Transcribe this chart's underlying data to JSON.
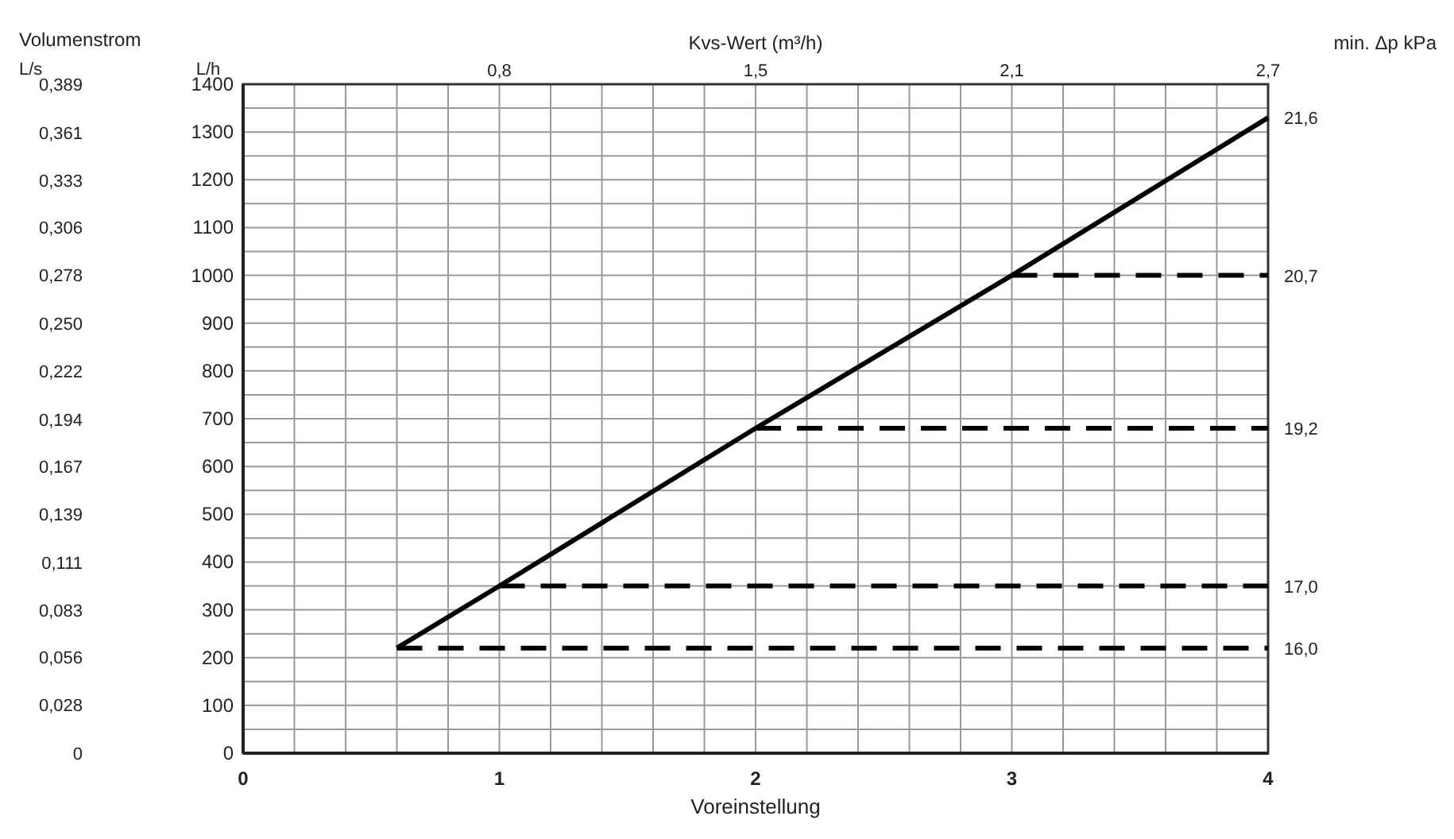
{
  "chart_data": {
    "type": "line",
    "annotations": [
      "Volumenstrom",
      "min. Δp kPa",
      "0,8",
      "1,5",
      "2,1",
      "2,7",
      "21,6",
      "16,0",
      "17,0",
      "19,2",
      "20,7"
    ],
    "xlabel": "Voreinstellung",
    "ylabel": "L/h",
    "y2label": "L/s",
    "x2label": "Kvs-Wert (m³/h)",
    "xlim": [
      0,
      4
    ],
    "xticks": [
      0,
      {
        "value": 0.2,
        "label": null
      },
      {
        "value": 0.4,
        "label": null
      },
      {
        "value": 0.6,
        "label": null
      },
      {
        "value": 0.8,
        "label": null
      },
      1,
      {
        "value": 1.2,
        "label": null
      },
      {
        "value": 1.4,
        "label": null
      },
      {
        "value": 1.6,
        "label": null
      },
      {
        "value": 1.8,
        "label": null
      },
      2,
      {
        "value": 2.2,
        "label": null
      },
      {
        "value": 2.4,
        "label": null
      },
      {
        "value": 2.6,
        "label": null
      },
      {
        "value": 2.8,
        "label": null
      },
      3,
      {
        "value": 3.2,
        "label": null
      },
      {
        "value": 3.4,
        "label": null
      },
      {
        "value": 3.6,
        "label": null
      },
      {
        "value": 3.8,
        "label": null
      },
      4
    ],
    "ylim": [
      0,
      1400
    ],
    "yticks": [
      0,
      {
        "value": 50,
        "label": null
      },
      100,
      {
        "value": 150,
        "label": null
      },
      200,
      {
        "value": 250,
        "label": null
      },
      300,
      {
        "value": 350,
        "label": null
      },
      400,
      {
        "value": 450,
        "label": null
      },
      500,
      {
        "value": 550,
        "label": null
      },
      600,
      {
        "value": 650,
        "label": null
      },
      700,
      {
        "value": 750,
        "label": null
      },
      800,
      {
        "value": 850,
        "label": null
      },
      900,
      {
        "value": 950,
        "label": null
      },
      1000,
      {
        "value": 1050,
        "label": null
      },
      1100,
      {
        "value": 1150,
        "label": null
      },
      1200,
      {
        "value": 1250,
        "label": null
      },
      1300,
      {
        "value": 1350,
        "label": null
      },
      1400
    ],
    "y2lim": [
      0,
      0.389
    ],
    "y2ticks": [
      0,
      {
        "value": 0.028,
        "label": "0,028"
      },
      {
        "value": 0.056,
        "label": "0,056"
      },
      {
        "value": 0.083,
        "label": "0,083"
      },
      {
        "value": 0.111,
        "label": "0,111"
      },
      {
        "value": 0.139,
        "label": "0,139"
      },
      {
        "value": 0.167,
        "label": "0,167"
      },
      {
        "value": 0.194,
        "label": "0,194"
      },
      {
        "value": 0.222,
        "label": "0,222"
      },
      {
        "value": 0.25,
        "label": "0,250"
      },
      {
        "value": 0.278,
        "label": "0,278"
      },
      {
        "value": 0.306,
        "label": "0,306"
      },
      {
        "value": 0.333,
        "label": "0,333"
      },
      {
        "value": 0.361,
        "label": "0,361"
      },
      {
        "value": 0.389,
        "label": "0,389"
      }
    ],
    "grid": true,
    "marker": "none",
    "series": [
      {
        "color": "#000000",
        "line_style": "solid",
        "x": [
          0.6,
          1,
          2,
          3,
          4
        ],
        "values": [
          220,
          350,
          680,
          1000,
          1330
        ]
      },
      {
        "color": "#000000",
        "line_style": "dashed",
        "x": [
          0.6,
          4
        ],
        "values": [
          220,
          220
        ]
      },
      {
        "color": "#000000",
        "line_style": "dashed",
        "x": [
          1,
          4
        ],
        "values": [
          350,
          350
        ]
      },
      {
        "color": "#000000",
        "line_style": "dashed",
        "x": [
          2,
          4
        ],
        "values": [
          680,
          680
        ]
      },
      {
        "color": "#000000",
        "line_style": "dashed",
        "x": [
          3,
          4
        ],
        "values": [
          1000,
          1000
        ]
      }
    ]
  }
}
